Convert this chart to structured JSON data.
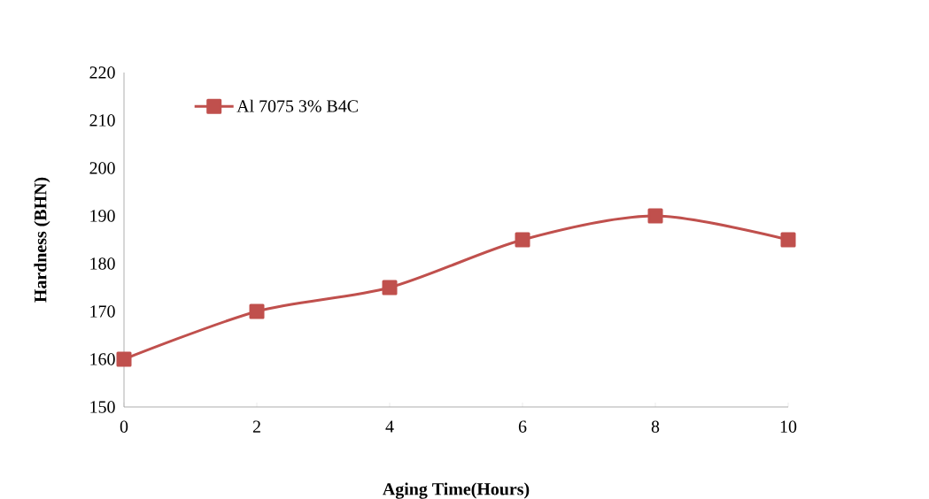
{
  "chart_data": {
    "type": "line",
    "xlabel": "Aging Time(Hours)",
    "ylabel": "Hardness (BHN)",
    "x": [
      0,
      2,
      4,
      6,
      8,
      10
    ],
    "series": [
      {
        "name": "Al 7075 3% B4C",
        "color": "#c0504d",
        "values": [
          160,
          170,
          175,
          185,
          190,
          185
        ]
      }
    ],
    "xlim": [
      0,
      10
    ],
    "xticks": [
      0,
      2,
      4,
      6,
      8,
      10
    ],
    "ylim": [
      150,
      220
    ],
    "yticks": [
      150,
      160,
      170,
      180,
      190,
      200,
      210,
      220
    ],
    "legend": "top left",
    "marker": "square",
    "line_style": "solid"
  }
}
